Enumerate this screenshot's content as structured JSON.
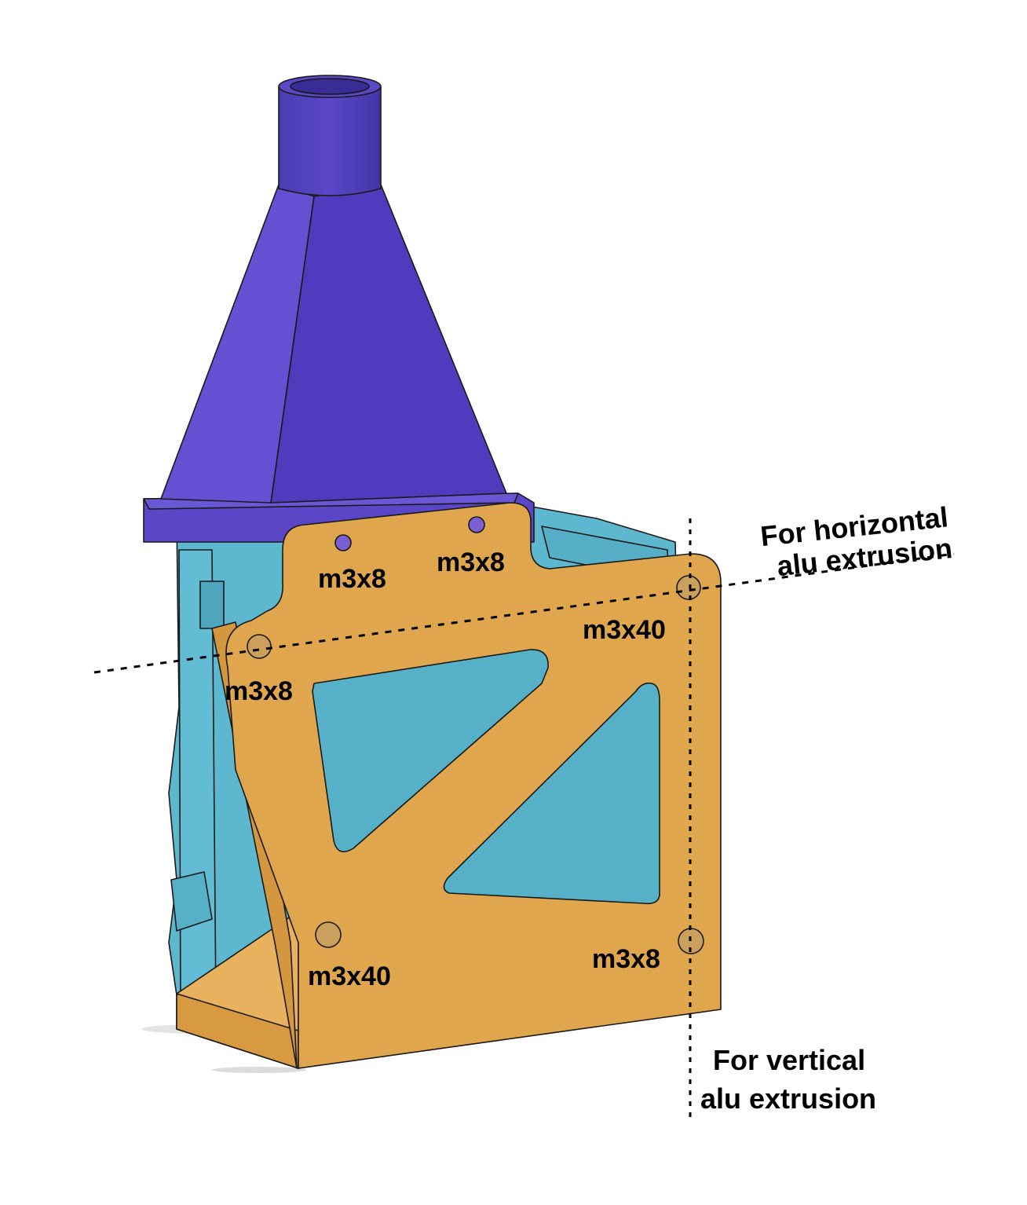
{
  "labels": {
    "screw_1": "m3x8",
    "screw_2": "m3x8",
    "screw_3": "m3x40",
    "screw_4": "m3x8",
    "screw_5": "m3x40",
    "screw_6": "m3x8"
  },
  "notes": {
    "horizontal_line1": "For horizontal",
    "horizontal_line2": "alu extrusion",
    "vertical_line1": "For vertical",
    "vertical_line2": "alu extrusion"
  },
  "colors": {
    "funnel": "#5544bf",
    "fan_housing": "#5db7cf",
    "bracket": "#e0a64d"
  }
}
